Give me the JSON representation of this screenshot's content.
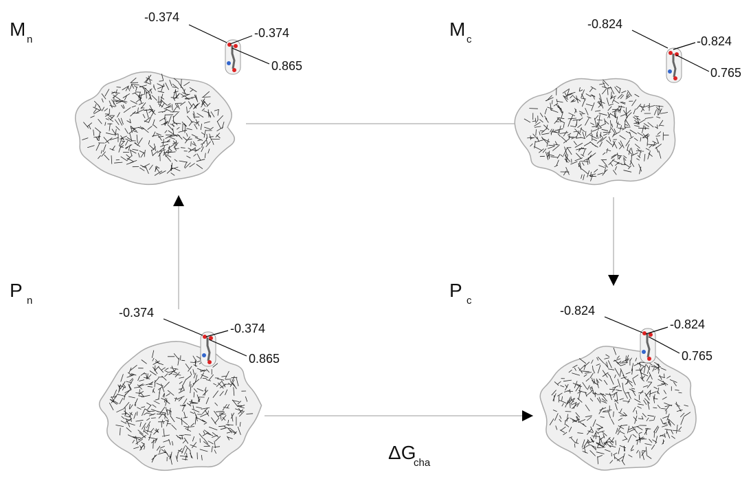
{
  "nodes": [
    {
      "label": "M",
      "subscript": "n",
      "charges": [
        "-0.374",
        "-0.374",
        "0.865"
      ]
    },
    {
      "label": "M",
      "subscript": "c",
      "charges": [
        "-0.824",
        "-0.824",
        "0.765"
      ]
    },
    {
      "label": "P",
      "subscript": "n",
      "charges": [
        "-0.374",
        "-0.374",
        "0.865"
      ]
    },
    {
      "label": "P",
      "subscript": "c",
      "charges": [
        "-0.824",
        "-0.824",
        "0.765"
      ]
    }
  ],
  "edge_label": {
    "main": "ΔG",
    "subscript": "cha"
  }
}
